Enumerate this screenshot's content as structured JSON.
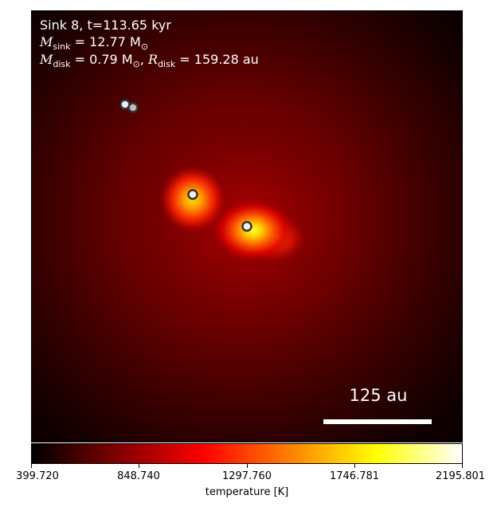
{
  "annotation": {
    "line1": "Sink 8, t=113.65 kyr",
    "msink_symbol": "M",
    "msink_sub": "sink",
    "msink_value": " = 12.77 M",
    "msink_unit_sub": "⊙",
    "mdisk_symbol": "M",
    "mdisk_sub": "disk",
    "mdisk_value": " = 0.79 M",
    "mdisk_unit_sub": "⊙",
    "sep": ", ",
    "rdisk_symbol": "R",
    "rdisk_sub": "disk",
    "rdisk_value": " = 159.28 au"
  },
  "scalebar": {
    "label": "125 au"
  },
  "colorbar": {
    "label": "temperature [K]",
    "ticks": [
      "399.720",
      "848.740",
      "1297.760",
      "1746.781",
      "2195.801"
    ],
    "colors": [
      "#000000",
      "#800000",
      "#ff0000",
      "#ff8000",
      "#ffff00",
      "#ffffff"
    ]
  }
}
